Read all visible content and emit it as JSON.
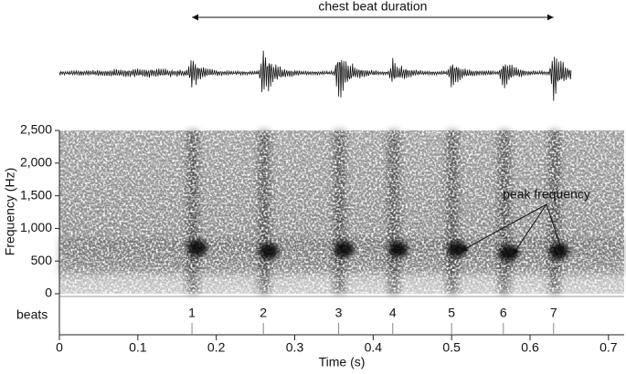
{
  "chart_data": {
    "type": "spectrogram",
    "x_label": "Time (s)",
    "y_label": "Frequency (Hz)",
    "xlim": [
      0,
      0.72
    ],
    "xticks": [
      0,
      0.1,
      0.2,
      0.3,
      0.4,
      0.5,
      0.6,
      0.7
    ],
    "ylim": [
      0,
      2500
    ],
    "yticks": [
      0,
      500,
      {
        "value": 1000,
        "label": "1,000"
      },
      {
        "value": 1500,
        "label": "1,500"
      },
      {
        "value": 2000,
        "label": "2,000"
      },
      {
        "value": 2500,
        "label": "2,500"
      }
    ],
    "beats": {
      "label": "beats",
      "numbers": [
        1,
        2,
        3,
        4,
        5,
        6,
        7
      ],
      "times": [
        0.169,
        0.26,
        0.356,
        0.425,
        0.5,
        0.566,
        0.63
      ]
    },
    "peak_frequency": {
      "label": "peak frequency",
      "values": [
        700,
        650,
        680,
        680,
        680,
        620,
        650
      ]
    },
    "duration_annotation": "chest beat duration"
  }
}
